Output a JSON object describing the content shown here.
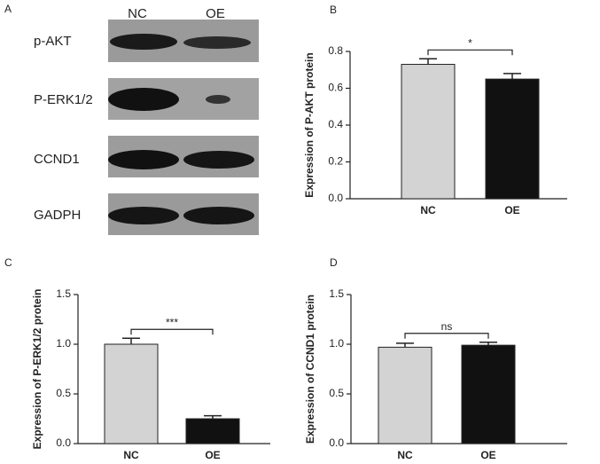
{
  "blot": {
    "label": "A",
    "columns": [
      "NC",
      "OE"
    ],
    "rows": [
      "p-AKT",
      "P-ERK1/2",
      "CCND1",
      "GADPH"
    ]
  },
  "chart_data": [
    {
      "type": "bar",
      "label": "B",
      "ylabel": "Expression of P-AKT protein",
      "categories": [
        "NC",
        "OE"
      ],
      "values": [
        0.73,
        0.65
      ],
      "errors": [
        0.03,
        0.03
      ],
      "colors": [
        "#d3d3d3",
        "#111111"
      ],
      "ylim": [
        0,
        0.8
      ],
      "yticks": [
        {
          "value": 0,
          "label": "0.0"
        },
        0.2,
        0.4,
        0.6,
        0.8
      ],
      "significance": "*"
    },
    {
      "type": "bar",
      "label": "C",
      "ylabel": "Expression of P-ERK1/2 protein",
      "categories": [
        "NC",
        "OE"
      ],
      "values": [
        1.0,
        0.25
      ],
      "errors": [
        0.06,
        0.03
      ],
      "colors": [
        "#d3d3d3",
        "#111111"
      ],
      "ylim": [
        0,
        1.5
      ],
      "yticks": [
        {
          "value": 0,
          "label": "0.0"
        },
        0.5,
        {
          "value": 1,
          "label": "1.0"
        },
        1.5
      ],
      "significance": "***"
    },
    {
      "type": "bar",
      "label": "D",
      "ylabel": "Expression of CCND1 protein",
      "categories": [
        "NC",
        "OE"
      ],
      "values": [
        0.97,
        0.99
      ],
      "errors": [
        0.04,
        0.03
      ],
      "colors": [
        "#d3d3d3",
        "#111111"
      ],
      "ylim": [
        0,
        1.5
      ],
      "yticks": [
        {
          "value": 0,
          "label": "0.0"
        },
        0.5,
        {
          "value": 1,
          "label": "1.0"
        },
        1.5
      ],
      "significance": "ns"
    }
  ]
}
